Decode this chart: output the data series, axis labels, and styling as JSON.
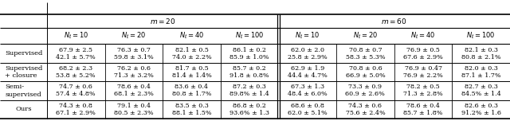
{
  "col_labels": [
    "$N_\\ell = 10$",
    "$N_\\ell = 20$",
    "$N_\\ell = 40$",
    "$N_\\ell = 100$",
    "$N_\\ell = 10$",
    "$N_\\ell = 20$",
    "$N_\\ell = 40$",
    "$N_\\ell = 100$"
  ],
  "row_labels": [
    "Supervised",
    "Supervised\n+ closure",
    "Semi-\nsupervised",
    "Ours"
  ],
  "data": [
    [
      "67.9 ± 2.5\n42.1 ± 5.7%",
      "76.3 ± 0.7\n59.8 ± 3.1%",
      "82.1 ± 0.5\n74.0 ± 2.2%",
      "86.1 ± 0.2\n85.9 ± 1.0%",
      "62.0 ± 2.0\n25.8 ± 2.9%",
      "70.8 ± 0.7\n58.3 ± 5.3%",
      "76.9 ± 0.5\n67.6 ± 2.9%",
      "82.1 ± 0.3\n80.8 ± 2.1%"
    ],
    [
      "68.2 ± 2.3\n53.8 ± 5.2%",
      "76.2 ± 0.6\n71.3 ± 3.2%",
      "81.7 ± 0.5\n81.4 ± 1.4%",
      "85.7 ± 0.2\n91.8 ± 0.8%",
      "62.9 ± 1.9\n44.4 ± 4.7%",
      "70.8 ± 0.6\n66.9 ± 5.0%",
      "76.9 ± 0.47\n76.9 ± 2.2%",
      "82.0 ± 0.3\n87.1 ± 1.7%"
    ],
    [
      "74.7 ± 0.6\n57.4 ± 4.8%",
      "78.6 ± 0.4\n68.1 ± 2.3%",
      "83.6 ± 0.4\n80.8 ± 1.7%",
      "87.2 ± 0.3\n89.8% ± 1.4",
      "67.3 ± 1.3\n48.4 ± 6.0%",
      "73.3 ± 0.9\n60.9 ± 2.6%",
      "78.2 ± 0.5\n71.3 ± 2.8%",
      "82.7 ± 0.3\n84.5% ± 1.4"
    ],
    [
      "74.3 ± 0.8\n67.1 ± 2.9%",
      "79.1 ± 0.4\n80.5 ± 2.3%",
      "83.5 ± 0.3\n88.1 ± 1.5%",
      "86.8 ± 0.2\n93.6% ± 1.3",
      "68.6 ± 0.8\n62.0 ± 5.1%",
      "74.3 ± 0.6\n75.6 ± 2.4%",
      "78.6 ± 0.4\n85.7 ± 1.8%",
      "82.6 ± 0.3\n91.2% ± 1.6"
    ]
  ],
  "m20_label": "$m = 20$",
  "m60_label": "$m = 60$",
  "bg_color": "#ffffff",
  "text_color": "#000000",
  "font_family": "serif",
  "cell_fontsize": 5.8,
  "header_fontsize": 6.5,
  "label_fontsize": 6.5
}
